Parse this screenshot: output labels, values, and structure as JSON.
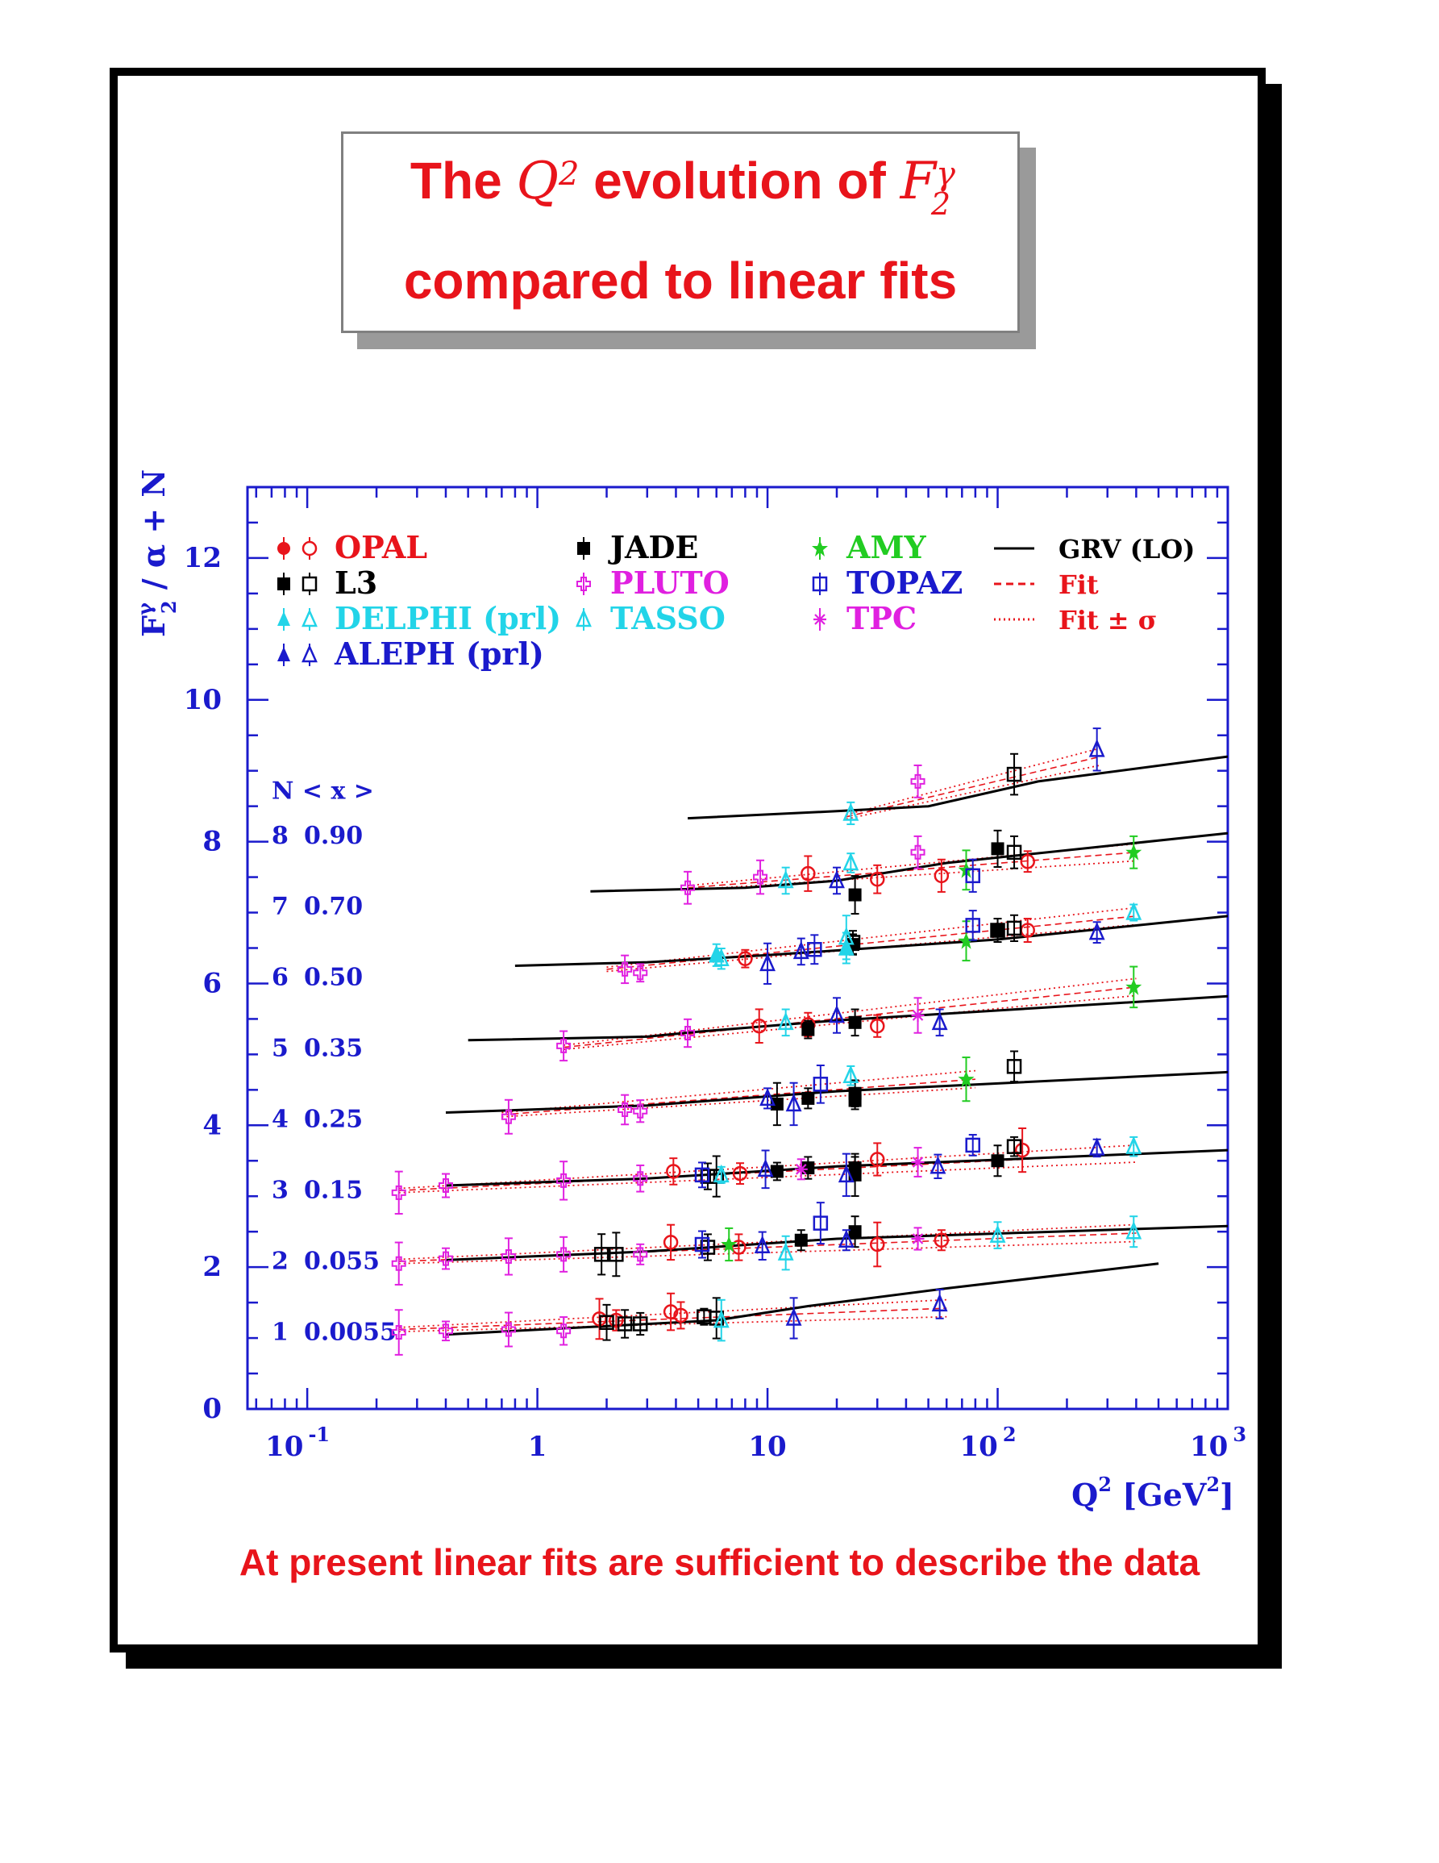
{
  "title": {
    "word_the": "The",
    "q2": "Q",
    "q2_exp": "2",
    "evolution_of": "evolution of",
    "f2": "F",
    "f2_sup": "γ",
    "f2_sub": "2",
    "line2": "compared to linear fits"
  },
  "footer": "At present linear fits are sufficient to describe the data",
  "colors": {
    "opal": "#e8141b",
    "l3": "#000000",
    "delphi": "#22d4e8",
    "aleph": "#1a1acc",
    "jade": "#000000",
    "pluto": "#e020e0",
    "tasso": "#22d4e8",
    "amy": "#22cc22",
    "topaz": "#1a1acc",
    "tpc": "#e020e0",
    "axis": "#1a1acc"
  },
  "chart_data": {
    "type": "scatter",
    "xscale": "log",
    "xlim": [
      0.055,
      1000
    ],
    "ylim": [
      0,
      13
    ],
    "xticks": [
      {
        "base": "10",
        "exp": "-1",
        "v": 0.1
      },
      {
        "base": "1",
        "exp": "",
        "v": 1
      },
      {
        "base": "10",
        "exp": "",
        "v": 10
      },
      {
        "base": "10",
        "exp": "2",
        "v": 100
      },
      {
        "base": "10",
        "exp": "3",
        "v": 1000
      }
    ],
    "yticks": [
      "0",
      "2",
      "4",
      "6",
      "8",
      "10",
      "12"
    ],
    "ylabel": {
      "main": "F",
      "sup": "γ",
      "sub": "2",
      "rest": " / α + N"
    },
    "xlabel": {
      "main": "Q",
      "sup": "2",
      "mid": " [GeV",
      "sup2": "2",
      "end": "]"
    },
    "nx_header": "N  < x >",
    "nx": [
      [
        "1",
        "0.0055"
      ],
      [
        "2",
        "0.055"
      ],
      [
        "3",
        "0.15"
      ],
      [
        "4",
        "0.25"
      ],
      [
        "5",
        "0.35"
      ],
      [
        "6",
        "0.50"
      ],
      [
        "7",
        "0.70"
      ],
      [
        "8",
        "0.90"
      ]
    ],
    "legend": [
      {
        "label": "OPAL",
        "color": "#e8141b",
        "col": 0,
        "row": 0
      },
      {
        "label": "L3",
        "color": "#000000",
        "col": 0,
        "row": 1
      },
      {
        "label": "DELPHI (prl)",
        "color": "#22d4e8",
        "col": 0,
        "row": 2
      },
      {
        "label": "ALEPH (prl)",
        "color": "#1a1acc",
        "col": 0,
        "row": 3
      },
      {
        "label": "JADE",
        "color": "#000000",
        "col": 1,
        "row": 0
      },
      {
        "label": "PLUTO",
        "color": "#e020e0",
        "col": 1,
        "row": 1
      },
      {
        "label": "TASSO",
        "color": "#22d4e8",
        "col": 1,
        "row": 2
      },
      {
        "label": "AMY",
        "color": "#22cc22",
        "col": 2,
        "row": 0
      },
      {
        "label": "TOPAZ",
        "color": "#1a1acc",
        "col": 2,
        "row": 1
      },
      {
        "label": "TPC",
        "color": "#e020e0",
        "col": 2,
        "row": 2
      },
      {
        "label": "GRV (LO)",
        "color": "#000000",
        "col": 3,
        "row": 0
      },
      {
        "label": "Fit",
        "color": "#e8141b",
        "col": 3,
        "row": 1
      },
      {
        "label": "Fit ± σ",
        "color": "#e8141b",
        "col": 3,
        "row": 2
      }
    ],
    "grv_lines": [
      {
        "N": 1,
        "pts": [
          [
            0.4,
            1.05
          ],
          [
            6,
            1.25
          ],
          [
            15,
            1.45
          ],
          [
            60,
            1.7
          ],
          [
            500,
            2.05
          ]
        ]
      },
      {
        "N": 2,
        "pts": [
          [
            0.4,
            2.1
          ],
          [
            3,
            2.22
          ],
          [
            20,
            2.4
          ],
          [
            1000,
            2.58
          ]
        ]
      },
      {
        "N": 3,
        "pts": [
          [
            0.4,
            3.15
          ],
          [
            3,
            3.25
          ],
          [
            20,
            3.42
          ],
          [
            1000,
            3.65
          ]
        ]
      },
      {
        "N": 4,
        "pts": [
          [
            0.4,
            4.18
          ],
          [
            3,
            4.28
          ],
          [
            20,
            4.48
          ],
          [
            1000,
            4.75
          ]
        ]
      },
      {
        "N": 5,
        "pts": [
          [
            0.5,
            5.2
          ],
          [
            3,
            5.25
          ],
          [
            5,
            5.32
          ],
          [
            20,
            5.48
          ],
          [
            1000,
            5.82
          ]
        ]
      },
      {
        "N": 6,
        "pts": [
          [
            0.8,
            6.25
          ],
          [
            3,
            6.3
          ],
          [
            10,
            6.4
          ],
          [
            100,
            6.62
          ],
          [
            1000,
            6.95
          ]
        ]
      },
      {
        "N": 7,
        "pts": [
          [
            1.7,
            7.3
          ],
          [
            8,
            7.35
          ],
          [
            20,
            7.45
          ],
          [
            60,
            7.7
          ],
          [
            1000,
            8.12
          ]
        ]
      },
      {
        "N": 8,
        "pts": [
          [
            4.5,
            8.33
          ],
          [
            20,
            8.43
          ],
          [
            50,
            8.5
          ],
          [
            150,
            8.85
          ],
          [
            1000,
            9.2
          ]
        ]
      }
    ],
    "fit_lines": [
      {
        "N": 1,
        "pts": [
          [
            0.25,
            1.12
          ],
          [
            60,
            1.42
          ]
        ]
      },
      {
        "N": 2,
        "pts": [
          [
            0.25,
            2.08
          ],
          [
            400,
            2.48
          ]
        ]
      },
      {
        "N": 3,
        "pts": [
          [
            0.25,
            3.08
          ],
          [
            400,
            3.6
          ]
        ]
      },
      {
        "N": 4,
        "pts": [
          [
            0.7,
            4.15
          ],
          [
            80,
            4.65
          ]
        ]
      },
      {
        "N": 5,
        "pts": [
          [
            1.3,
            5.1
          ],
          [
            400,
            5.95
          ]
        ]
      },
      {
        "N": 6,
        "pts": [
          [
            2,
            6.2
          ],
          [
            400,
            6.95
          ]
        ]
      },
      {
        "N": 7,
        "pts": [
          [
            4.5,
            7.35
          ],
          [
            400,
            7.85
          ]
        ]
      },
      {
        "N": 8,
        "pts": [
          [
            22,
            8.35
          ],
          [
            280,
            9.2
          ]
        ]
      }
    ],
    "series": [
      {
        "name": "OPAL",
        "color": "#e8141b",
        "points": [
          [
            1.86,
            1.27
          ],
          [
            2.2,
            1.25
          ],
          [
            3.8,
            1.37
          ],
          [
            4.2,
            1.32
          ],
          [
            3.8,
            2.35
          ],
          [
            7.5,
            2.28
          ],
          [
            30,
            2.32
          ],
          [
            57,
            2.38
          ],
          [
            3.9,
            3.35
          ],
          [
            7.6,
            3.32
          ],
          [
            30,
            3.52
          ],
          [
            128,
            3.65
          ],
          [
            9.2,
            5.4
          ],
          [
            15,
            5.42
          ],
          [
            30,
            5.4
          ],
          [
            8,
            6.35
          ],
          [
            135,
            6.75
          ],
          [
            15,
            7.55
          ],
          [
            30,
            7.47
          ],
          [
            57,
            7.52
          ],
          [
            135,
            7.72
          ]
        ]
      },
      {
        "name": "L3",
        "color": "#000000",
        "points": [
          [
            2,
            1.22
          ],
          [
            2.4,
            1.2
          ],
          [
            2.8,
            1.2
          ],
          [
            5.3,
            1.3
          ],
          [
            6,
            1.28
          ],
          [
            1.9,
            2.18
          ],
          [
            2.2,
            2.18
          ],
          [
            5.5,
            2.28
          ],
          [
            5.5,
            3.28
          ],
          [
            6,
            3.28
          ],
          [
            118,
            3.7
          ],
          [
            118,
            4.83
          ],
          [
            23.5,
            6.58
          ],
          [
            100,
            6.75
          ],
          [
            118,
            6.78
          ],
          [
            118,
            7.85
          ],
          [
            118,
            8.95
          ]
        ]
      },
      {
        "name": "JADE",
        "color": "#000000",
        "points": [
          [
            14,
            2.38
          ],
          [
            24,
            2.5
          ],
          [
            11,
            3.35
          ],
          [
            15,
            3.4
          ],
          [
            24,
            3.4
          ],
          [
            24,
            3.3
          ],
          [
            100,
            3.5
          ],
          [
            11,
            4.3
          ],
          [
            15,
            4.38
          ],
          [
            24,
            4.35
          ],
          [
            24,
            4.45
          ],
          [
            15,
            5.35
          ],
          [
            24,
            5.45
          ],
          [
            23.5,
            6.55
          ],
          [
            100,
            6.75
          ],
          [
            24,
            7.25
          ],
          [
            100,
            7.9
          ]
        ]
      },
      {
        "name": "PLUTO",
        "color": "#e020e0",
        "points": [
          [
            0.25,
            1.08
          ],
          [
            0.4,
            1.1
          ],
          [
            0.75,
            1.12
          ],
          [
            1.3,
            1.1
          ],
          [
            0.25,
            2.05
          ],
          [
            0.4,
            2.12
          ],
          [
            0.75,
            2.15
          ],
          [
            1.3,
            2.18
          ],
          [
            2.8,
            2.18
          ],
          [
            0.25,
            3.05
          ],
          [
            0.4,
            3.15
          ],
          [
            1.3,
            3.22
          ],
          [
            2.8,
            3.25
          ],
          [
            0.75,
            4.12
          ],
          [
            2.4,
            4.22
          ],
          [
            2.8,
            4.2
          ],
          [
            1.3,
            5.12
          ],
          [
            4.5,
            5.3
          ],
          [
            2.4,
            6.2
          ],
          [
            2.8,
            6.15
          ],
          [
            4.5,
            7.35
          ],
          [
            9.3,
            7.5
          ],
          [
            45,
            7.85
          ],
          [
            45,
            8.85
          ]
        ]
      },
      {
        "name": "TASSO",
        "color": "#22d4e8",
        "points": [
          [
            6.3,
            1.25
          ],
          [
            12,
            2.2
          ],
          [
            100,
            2.45
          ],
          [
            390,
            2.5
          ],
          [
            6.3,
            3.3
          ],
          [
            390,
            3.7
          ],
          [
            12,
            5.45
          ],
          [
            23,
            4.7
          ],
          [
            6.3,
            6.35
          ],
          [
            22,
            6.65
          ],
          [
            390,
            7
          ],
          [
            12,
            7.45
          ],
          [
            23,
            7.7
          ],
          [
            23,
            8.4
          ]
        ]
      },
      {
        "name": "AMY",
        "color": "#22cc22",
        "points": [
          [
            6.8,
            2.32
          ],
          [
            73,
            4.65
          ],
          [
            390,
            5.95
          ],
          [
            73,
            6.6
          ],
          [
            73,
            7.6
          ],
          [
            390,
            7.85
          ]
        ]
      },
      {
        "name": "TOPAZ",
        "color": "#1a1acc",
        "points": [
          [
            5.2,
            2.32
          ],
          [
            17,
            2.62
          ],
          [
            5.2,
            3.3
          ],
          [
            78,
            3.72
          ],
          [
            17,
            4.58
          ],
          [
            16,
            6.48
          ],
          [
            78,
            6.82
          ],
          [
            78,
            7.52
          ]
        ]
      },
      {
        "name": "TPC",
        "color": "#e020e0",
        "points": [
          [
            45,
            2.4
          ],
          [
            14,
            3.38
          ],
          [
            45,
            3.48
          ],
          [
            45,
            5.55
          ]
        ]
      },
      {
        "name": "DELPHI (prl)",
        "color": "#22d4e8",
        "points": [
          [
            6,
            6.4
          ],
          [
            22,
            6.5
          ]
        ]
      },
      {
        "name": "ALEPH (prl)",
        "color": "#1a1acc",
        "points": [
          [
            13,
            1.28
          ],
          [
            56,
            1.48
          ],
          [
            9.5,
            2.3
          ],
          [
            22,
            2.38
          ],
          [
            9.8,
            3.38
          ],
          [
            22,
            3.3
          ],
          [
            55,
            3.42
          ],
          [
            270,
            3.68
          ],
          [
            10,
            4.38
          ],
          [
            13,
            4.3
          ],
          [
            20,
            5.55
          ],
          [
            56,
            5.45
          ],
          [
            10,
            6.28
          ],
          [
            14,
            6.45
          ],
          [
            270,
            6.72
          ],
          [
            20,
            7.45
          ],
          [
            270,
            9.3
          ]
        ]
      }
    ]
  }
}
